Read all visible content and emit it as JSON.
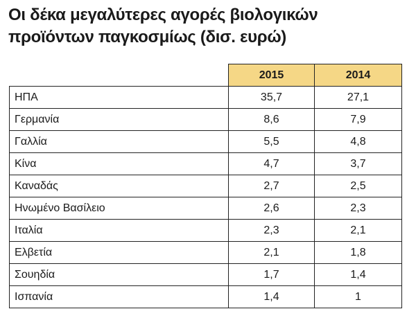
{
  "title_line1": "Οι δέκα μεγαλύτερες αγορές βιολογικών",
  "title_line2": "προϊόντων παγκοσμίως (δισ. ευρώ)",
  "table": {
    "headers": [
      "",
      "2015",
      "2014"
    ],
    "rows": [
      [
        "ΗΠΑ",
        "35,7",
        "27,1"
      ],
      [
        "Γερμανία",
        "8,6",
        "7,9"
      ],
      [
        "Γαλλία",
        "5,5",
        "4,8"
      ],
      [
        "Κίνα",
        "4,7",
        "3,7"
      ],
      [
        "Καναδάς",
        "2,7",
        "2,5"
      ],
      [
        "Ηνωμένο Βασίλειο",
        "2,6",
        "2,3"
      ],
      [
        "Ιταλία",
        "2,3",
        "2,1"
      ],
      [
        "Ελβετία",
        "2,1",
        "1,8"
      ],
      [
        "Σουηδία",
        "1,7",
        "1,4"
      ],
      [
        "Ισπανία",
        "1,4",
        "1"
      ]
    ]
  },
  "colors": {
    "header_background": "#f5d786",
    "border": "#222222"
  }
}
